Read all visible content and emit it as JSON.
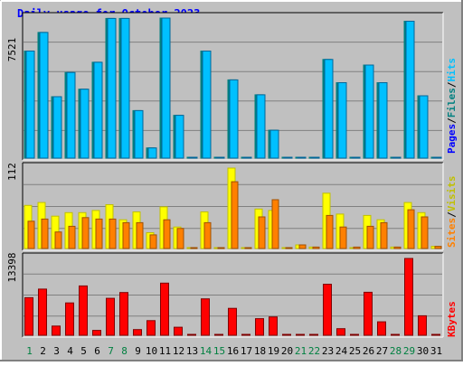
{
  "title": "Daily usage for October 2023",
  "colors": {
    "background": "#c0c0c0",
    "title": "#0000ff",
    "hits": "#00c0ff",
    "hits_edge": "#006699",
    "files": "#008080",
    "pages": "#0000ff",
    "visits": "#ffff00",
    "visits_edge": "#c0c000",
    "sites": "#ff8000",
    "kbytes": "#ff0000",
    "weekend_label": "#008040",
    "weekday_label": "#000000"
  },
  "chart_data": [
    {
      "type": "bar",
      "panel": "hits",
      "y_max_label": "7521",
      "ylim": [
        0,
        7521
      ],
      "legend": {
        "pages": "Pages",
        "sep1": "/",
        "files": "Files",
        "sep2": "/",
        "hits": "Hits"
      },
      "categories": [
        "1",
        "2",
        "3",
        "4",
        "5",
        "6",
        "7",
        "8",
        "9",
        "10",
        "11",
        "12",
        "13",
        "14",
        "15",
        "16",
        "17",
        "18",
        "19",
        "20",
        "21",
        "22",
        "23",
        "24",
        "25",
        "26",
        "27",
        "28",
        "29",
        "30",
        "31"
      ],
      "series": [
        {
          "name": "Hits",
          "values": [
            5750,
            6750,
            3300,
            4600,
            3700,
            5150,
            7500,
            7500,
            2550,
            550,
            7521,
            2300,
            0,
            5750,
            0,
            4200,
            0,
            3400,
            1500,
            0,
            0,
            0,
            5300,
            4050,
            0,
            5000,
            4050,
            0,
            7350,
            3350,
            0
          ]
        },
        {
          "name": "Files",
          "values": [
            5750,
            6750,
            3300,
            4600,
            3700,
            5150,
            7500,
            7500,
            2550,
            550,
            7521,
            2300,
            0,
            5750,
            0,
            4200,
            0,
            3400,
            1500,
            0,
            0,
            0,
            5300,
            4050,
            0,
            5000,
            4050,
            0,
            7350,
            3350,
            0
          ]
        },
        {
          "name": "Pages",
          "values": [
            0,
            0,
            0,
            0,
            0,
            0,
            0,
            0,
            0,
            0,
            0,
            0,
            0,
            0,
            0,
            0,
            0,
            0,
            0,
            0,
            0,
            0,
            0,
            0,
            0,
            0,
            0,
            0,
            0,
            0,
            0
          ]
        }
      ]
    },
    {
      "type": "bar",
      "panel": "visits",
      "y_max_label": "112",
      "ylim": [
        0,
        112
      ],
      "legend": {
        "sites": "Sites",
        "sep": "/",
        "visits": "Visits"
      },
      "categories": [
        "1",
        "2",
        "3",
        "4",
        "5",
        "6",
        "7",
        "8",
        "9",
        "10",
        "11",
        "12",
        "13",
        "14",
        "15",
        "16",
        "17",
        "18",
        "19",
        "20",
        "21",
        "22",
        "23",
        "24",
        "25",
        "26",
        "27",
        "28",
        "29",
        "30",
        "31"
      ],
      "series": [
        {
          "name": "Visits",
          "values": [
            60,
            64,
            45,
            50,
            50,
            53,
            61,
            40,
            51,
            22,
            58,
            30,
            0,
            51,
            0,
            112,
            0,
            55,
            53,
            0,
            5,
            2,
            77,
            48,
            0,
            46,
            40,
            2,
            64,
            50,
            3
          ]
        },
        {
          "name": "Sites",
          "values": [
            38,
            41,
            23,
            31,
            43,
            41,
            41,
            36,
            36,
            19,
            40,
            28,
            0,
            36,
            0,
            93,
            0,
            44,
            68,
            0,
            5,
            2,
            46,
            30,
            2,
            31,
            36,
            2,
            54,
            44,
            3
          ]
        }
      ]
    },
    {
      "type": "bar",
      "panel": "kbytes",
      "y_max_label": "13398",
      "ylim": [
        0,
        13398
      ],
      "legend": {
        "kbytes": "KBytes"
      },
      "categories": [
        "1",
        "2",
        "3",
        "4",
        "5",
        "6",
        "7",
        "8",
        "9",
        "10",
        "11",
        "12",
        "13",
        "14",
        "15",
        "16",
        "17",
        "18",
        "19",
        "20",
        "21",
        "22",
        "23",
        "24",
        "25",
        "26",
        "27",
        "28",
        "29",
        "30",
        "31"
      ],
      "series": [
        {
          "name": "KBytes",
          "values": [
            6550,
            8050,
            1600,
            5650,
            8600,
            850,
            6450,
            7450,
            1000,
            2550,
            9100,
            1400,
            0,
            6350,
            0,
            4700,
            0,
            2900,
            3200,
            0,
            0,
            0,
            8900,
            1150,
            0,
            7500,
            2350,
            0,
            13398,
            3400,
            0
          ]
        }
      ]
    }
  ],
  "weekend_days": [
    1,
    7,
    8,
    14,
    15,
    21,
    22,
    28,
    29
  ]
}
